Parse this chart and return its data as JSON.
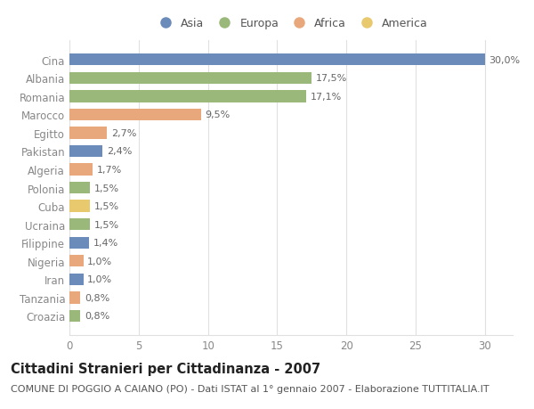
{
  "categories": [
    "Cina",
    "Albania",
    "Romania",
    "Marocco",
    "Egitto",
    "Pakistan",
    "Algeria",
    "Polonia",
    "Cuba",
    "Ucraina",
    "Filippine",
    "Nigeria",
    "Iran",
    "Tanzania",
    "Croazia"
  ],
  "values": [
    30.0,
    17.5,
    17.1,
    9.5,
    2.7,
    2.4,
    1.7,
    1.5,
    1.5,
    1.5,
    1.4,
    1.0,
    1.0,
    0.8,
    0.8
  ],
  "labels": [
    "30,0%",
    "17,5%",
    "17,1%",
    "9,5%",
    "2,7%",
    "2,4%",
    "1,7%",
    "1,5%",
    "1,5%",
    "1,5%",
    "1,4%",
    "1,0%",
    "1,0%",
    "0,8%",
    "0,8%"
  ],
  "colors": [
    "#6b8cba",
    "#9ab87a",
    "#9ab87a",
    "#e8a87c",
    "#e8a87c",
    "#6b8cba",
    "#e8a87c",
    "#9ab87a",
    "#e8c96e",
    "#9ab87a",
    "#6b8cba",
    "#e8a87c",
    "#6b8cba",
    "#e8a87c",
    "#9ab87a"
  ],
  "legend_labels": [
    "Asia",
    "Europa",
    "Africa",
    "America"
  ],
  "legend_colors": [
    "#6b8cba",
    "#9ab87a",
    "#e8a87c",
    "#e8c96e"
  ],
  "title": "Cittadini Stranieri per Cittadinanza - 2007",
  "subtitle": "COMUNE DI POGGIO A CAIANO (PO) - Dati ISTAT al 1° gennaio 2007 - Elaborazione TUTTITALIA.IT",
  "xlim": [
    0,
    32.0
  ],
  "xticks": [
    0,
    5,
    10,
    15,
    20,
    25,
    30
  ],
  "background_color": "#ffffff",
  "grid_color": "#e0e0e0",
  "bar_height": 0.65,
  "title_fontsize": 10.5,
  "subtitle_fontsize": 8,
  "label_fontsize": 8,
  "tick_fontsize": 8.5,
  "legend_fontsize": 9
}
